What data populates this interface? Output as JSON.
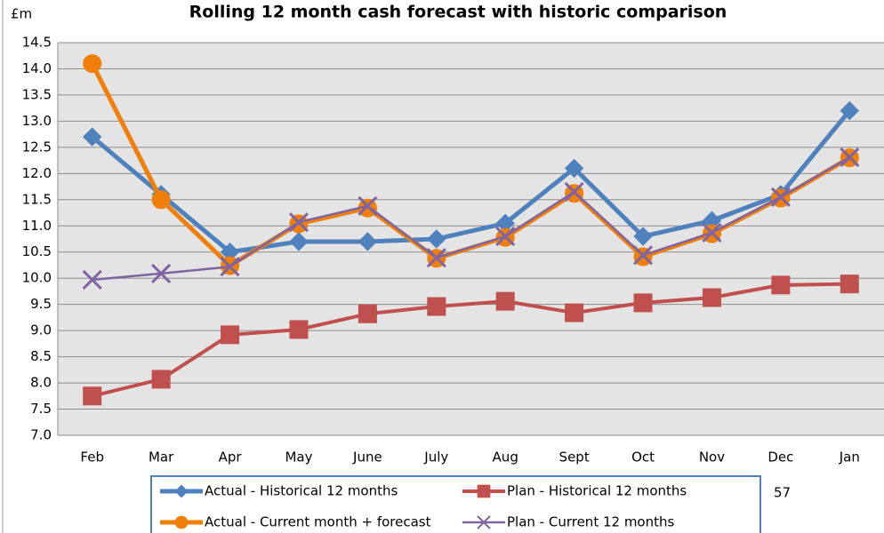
{
  "chart_data": {
    "type": "line",
    "title": "Rolling 12 month cash forecast with historic comparison",
    "y_label": "£m",
    "categories": [
      "Feb",
      "Mar",
      "Apr",
      "May",
      "June",
      "July",
      "Aug",
      "Sept",
      "Oct",
      "Nov",
      "Dec",
      "Jan"
    ],
    "series": [
      {
        "name": "Actual - Historical 12 months",
        "color": "#4f81bd",
        "marker": "diamond",
        "values": [
          12.7,
          11.6,
          10.5,
          10.7,
          10.7,
          10.75,
          11.05,
          12.1,
          10.8,
          11.1,
          11.6,
          13.2
        ]
      },
      {
        "name": "Plan - Historical 12 months",
        "color": "#c0504d",
        "marker": "square",
        "values": [
          7.75,
          8.07,
          8.92,
          9.02,
          9.32,
          9.46,
          9.56,
          9.34,
          9.53,
          9.63,
          9.87,
          9.89
        ]
      },
      {
        "name": "Actual - Current month + forecast",
        "color": "#f07f09",
        "marker": "circle",
        "values": [
          14.1,
          11.5,
          10.24,
          11.04,
          11.34,
          10.38,
          10.78,
          11.62,
          10.41,
          10.85,
          11.53,
          12.3
        ]
      },
      {
        "name": "Plan - Current 12 months",
        "color": "#8064a2",
        "marker": "x",
        "values": [
          9.97,
          10.09,
          10.22,
          11.07,
          11.38,
          10.39,
          10.8,
          11.65,
          10.44,
          10.87,
          11.55,
          12.31
        ]
      }
    ],
    "ylim": [
      7,
      14.5
    ],
    "yticks": [
      {
        "value": 7,
        "label": "7.0"
      },
      7.5,
      {
        "value": 8,
        "label": "8.0"
      },
      8.5,
      {
        "value": 9,
        "label": "9.0"
      },
      9.5,
      {
        "value": 10,
        "label": "10.0"
      },
      10.5,
      {
        "value": 11,
        "label": "11.0"
      },
      11.5,
      {
        "value": 12,
        "label": "12.0"
      },
      12.5,
      {
        "value": 13,
        "label": "13.0"
      },
      13.5,
      {
        "value": 14,
        "label": "14.0"
      },
      14.5
    ],
    "grid": true,
    "legend": "bottom"
  },
  "page_number": "57"
}
